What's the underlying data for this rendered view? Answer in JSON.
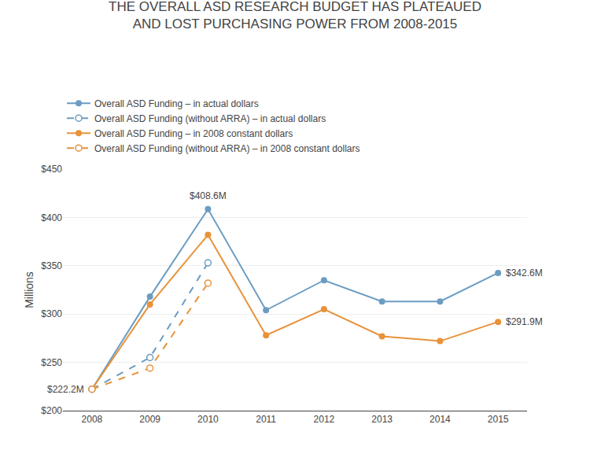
{
  "chart_data": {
    "type": "line",
    "title": "THE OVERALL ASD RESEARCH BUDGET HAS PLATEAUED",
    "subtitle": "AND LOST PURCHASING POWER FROM 2008-2015",
    "y_label": "Millions",
    "x": [
      2008,
      2009,
      2010,
      2011,
      2012,
      2013,
      2014,
      2015
    ],
    "series": [
      {
        "name": "Overall ASD Funding – in actual dollars",
        "color": "#6b9dc2",
        "line_style": "solid",
        "marker": "circle",
        "values": [
          222.2,
          318.0,
          408.6,
          304.0,
          335.0,
          313.0,
          313.0,
          342.6
        ]
      },
      {
        "name": "Overall ASD Funding (without ARRA) – in actual dollars",
        "color": "#6b9dc2",
        "line_style": "dashed",
        "marker": "open_circle",
        "values": [
          222.2,
          255.0,
          353.0,
          null,
          null,
          null,
          null,
          null
        ]
      },
      {
        "name": "Overall ASD Funding – in 2008 constant dollars",
        "color": "#e8923a",
        "line_style": "solid",
        "marker": "circle",
        "values": [
          222.2,
          310.0,
          382.0,
          278.0,
          305.0,
          277.0,
          272.0,
          291.9
        ]
      },
      {
        "name": "Overall ASD Funding (without ARRA) – in 2008 constant dollars",
        "color": "#e8923a",
        "line_style": "dashed",
        "marker": "open_circle",
        "values": [
          222.2,
          244.0,
          332.0,
          null,
          null,
          null,
          null,
          null
        ]
      }
    ],
    "annotations": [
      {
        "text": "$222.2M",
        "x": 2008,
        "y": 222.2
      },
      {
        "text": "$408.6M",
        "x": 2010,
        "y": 408.6
      },
      {
        "text": "$342.6M",
        "x": 2015,
        "y": 342.6
      },
      {
        "text": "$291.9M",
        "x": 2015,
        "y": 291.9
      }
    ],
    "xlim": [
      2007.5,
      2015.5
    ],
    "xticks": [
      2008,
      2009,
      2010,
      2011,
      2012,
      2013,
      2014,
      2015
    ],
    "ylim": [
      200,
      450
    ],
    "yticks": [
      {
        "value": 200,
        "label": "$200"
      },
      {
        "value": 250,
        "label": "$250"
      },
      {
        "value": 300,
        "label": "$300"
      },
      {
        "value": 350,
        "label": "$350"
      },
      {
        "value": 400,
        "label": "$400"
      },
      {
        "value": 450,
        "label": "$450"
      }
    ],
    "grid": true,
    "legend": "top"
  }
}
